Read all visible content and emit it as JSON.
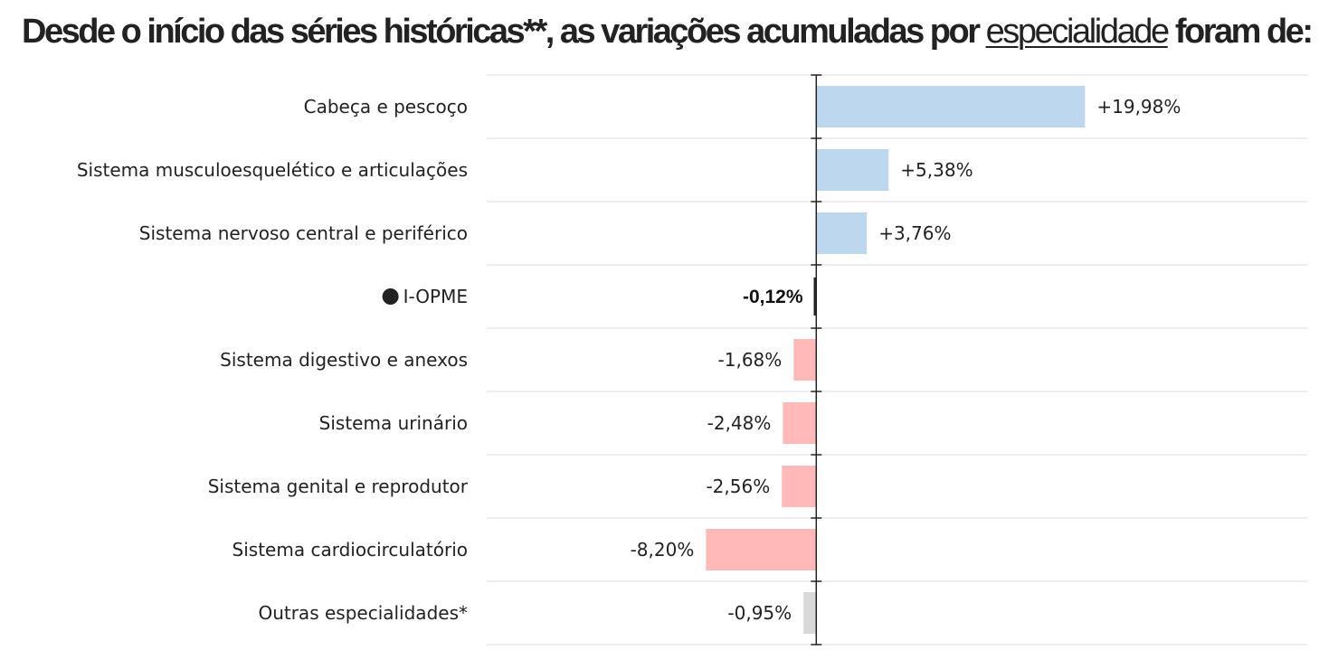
{
  "title": {
    "before": "Desde o início das séries históricas**, as variações acumuladas por ",
    "underlined": "especialidade",
    "after": " foram de:"
  },
  "chart_data": {
    "type": "bar",
    "orientation": "horizontal",
    "title": "Desde o início das séries históricas**, as variações acumuladas por especialidade foram de:",
    "xlabel": "",
    "ylabel": "",
    "xlim": [
      -24.5,
      36.5
    ],
    "grid": true,
    "legend": "none",
    "categories": [
      "Cabeça e pescoço",
      "Sistema musculoesquelético e articulações",
      "Sistema nervoso central e periférico",
      "I-OPME",
      "Sistema digestivo e anexos",
      "Sistema urinário",
      "Sistema genital e reprodutor",
      "Sistema cardiocirculatório",
      "Outras especialidades*"
    ],
    "values": [
      19.98,
      5.38,
      3.76,
      -0.12,
      -1.68,
      -2.48,
      -2.56,
      -8.2,
      -0.95
    ],
    "value_labels": [
      "+19,98%",
      "+5,38%",
      "+3,76%",
      "-0,12%",
      "-1,68%",
      "-2,48%",
      "-2,56%",
      "-8,20%",
      "-0,95%"
    ],
    "highlight": "I-OPME",
    "colors": {
      "positive": "#bdd7ee",
      "negative": "#ffb9b9",
      "other": "#d9d9d9",
      "highlight": "#222222",
      "grid": "#dddddd",
      "axis": "#222222",
      "text": "#222222"
    }
  }
}
